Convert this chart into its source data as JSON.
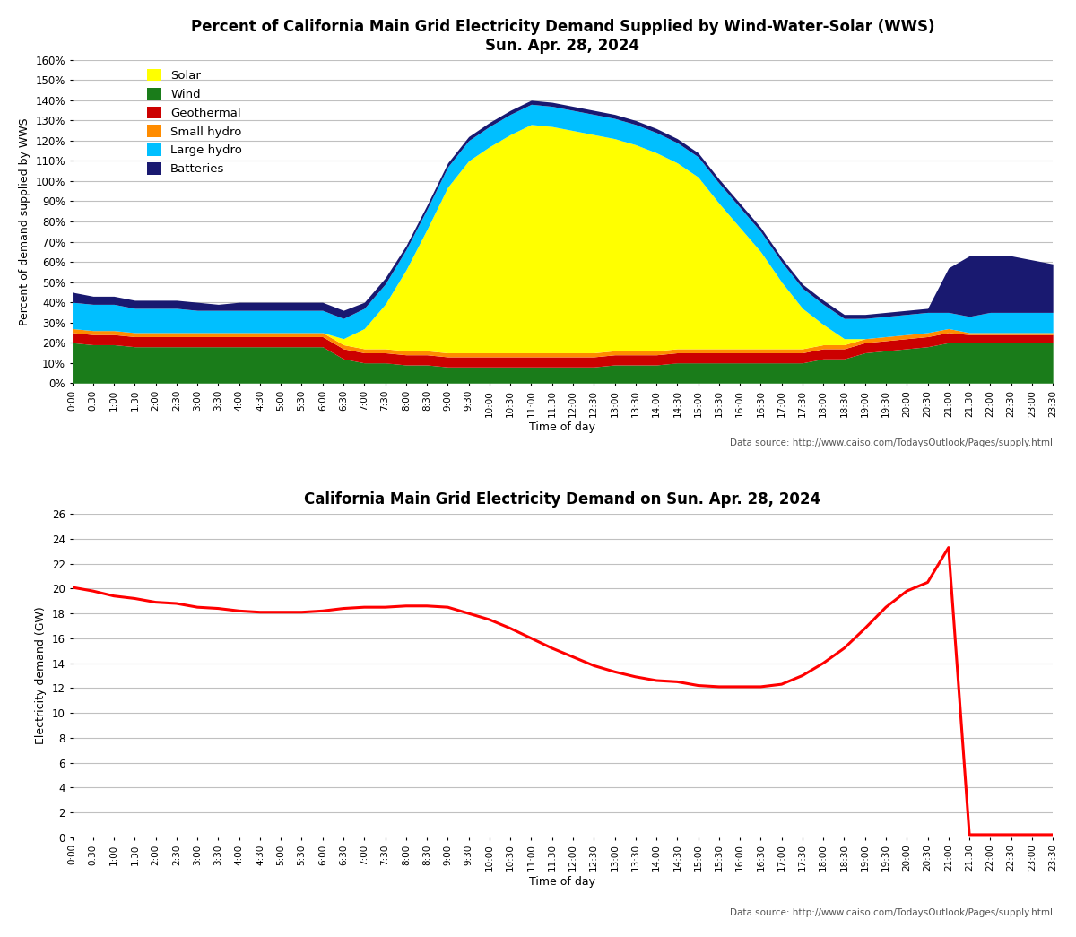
{
  "title1": "Percent of California Main Grid Electricity Demand Supplied by Wind-Water-Solar (WWS)",
  "subtitle1": "Sun. Apr. 28, 2024",
  "title2": "California Main Grid Electricity Demand on Sun. Apr. 28, 2024",
  "ylabel1": "Percent of demand supplied by WWS",
  "ylabel2": "Electricity demand (GW)",
  "xlabel": "Time of day",
  "datasource": "Data source: http://www.caiso.com/TodaysOutlook/Pages/supply.html",
  "time_labels": [
    "0:00",
    "0:30",
    "1:00",
    "1:30",
    "2:00",
    "2:30",
    "3:00",
    "3:30",
    "4:00",
    "4:30",
    "5:00",
    "5:30",
    "6:00",
    "6:30",
    "7:00",
    "7:30",
    "8:00",
    "8:30",
    "9:00",
    "9:30",
    "10:00",
    "10:30",
    "11:00",
    "11:30",
    "12:00",
    "12:30",
    "13:00",
    "13:30",
    "14:00",
    "14:30",
    "15:00",
    "15:30",
    "16:00",
    "16:30",
    "17:00",
    "17:30",
    "18:00",
    "18:30",
    "19:00",
    "19:30",
    "20:00",
    "20:30",
    "21:00",
    "21:30",
    "22:00",
    "22:30",
    "23:00",
    "23:30"
  ],
  "colors": {
    "Solar": "#ffff00",
    "Wind": "#1a7c1a",
    "Geothermal": "#cc0000",
    "Small_hydro": "#ff8c00",
    "Large_hydro": "#00bfff",
    "Batteries": "#191970"
  },
  "wind": [
    20,
    19,
    19,
    18,
    18,
    18,
    18,
    18,
    18,
    18,
    18,
    18,
    18,
    12,
    10,
    10,
    9,
    9,
    8,
    8,
    8,
    8,
    8,
    8,
    8,
    8,
    9,
    9,
    9,
    10,
    10,
    10,
    10,
    10,
    10,
    10,
    12,
    12,
    15,
    16,
    17,
    18,
    20,
    20,
    20,
    20,
    20,
    20
  ],
  "geothermal": [
    5,
    5,
    5,
    5,
    5,
    5,
    5,
    5,
    5,
    5,
    5,
    5,
    5,
    5,
    5,
    5,
    5,
    5,
    5,
    5,
    5,
    5,
    5,
    5,
    5,
    5,
    5,
    5,
    5,
    5,
    5,
    5,
    5,
    5,
    5,
    5,
    5,
    5,
    5,
    5,
    5,
    5,
    5,
    4,
    4,
    4,
    4,
    4
  ],
  "small_hydro": [
    2,
    2,
    2,
    2,
    2,
    2,
    2,
    2,
    2,
    2,
    2,
    2,
    2,
    2,
    2,
    2,
    2,
    2,
    2,
    2,
    2,
    2,
    2,
    2,
    2,
    2,
    2,
    2,
    2,
    2,
    2,
    2,
    2,
    2,
    2,
    2,
    2,
    2,
    2,
    2,
    2,
    2,
    2,
    1,
    1,
    1,
    1,
    1
  ],
  "solar": [
    0,
    0,
    0,
    0,
    0,
    0,
    0,
    0,
    0,
    0,
    0,
    0,
    0,
    3,
    10,
    22,
    40,
    60,
    82,
    95,
    102,
    108,
    113,
    112,
    110,
    108,
    105,
    102,
    98,
    92,
    85,
    72,
    60,
    48,
    33,
    20,
    10,
    3,
    0,
    0,
    0,
    0,
    0,
    0,
    0,
    0,
    0,
    0
  ],
  "large_hydro": [
    13,
    13,
    13,
    12,
    12,
    12,
    11,
    11,
    11,
    11,
    11,
    11,
    11,
    10,
    10,
    10,
    10,
    10,
    10,
    10,
    10,
    10,
    10,
    10,
    10,
    10,
    10,
    10,
    10,
    10,
    10,
    10,
    10,
    10,
    10,
    10,
    10,
    10,
    10,
    10,
    10,
    10,
    8,
    8,
    10,
    10,
    10,
    10
  ],
  "batteries": [
    5,
    4,
    4,
    4,
    4,
    4,
    4,
    3,
    4,
    4,
    4,
    4,
    4,
    4,
    3,
    3,
    2,
    2,
    2,
    2,
    2,
    2,
    2,
    2,
    2,
    2,
    2,
    2,
    2,
    2,
    2,
    2,
    2,
    2,
    2,
    2,
    2,
    2,
    2,
    2,
    2,
    2,
    22,
    30,
    28,
    28,
    26,
    24
  ],
  "demand_gw": [
    20.1,
    19.8,
    19.4,
    19.2,
    18.9,
    18.8,
    18.5,
    18.4,
    18.2,
    18.1,
    18.1,
    18.1,
    18.2,
    18.4,
    18.5,
    18.5,
    18.6,
    18.6,
    18.5,
    18.0,
    17.5,
    16.8,
    16.0,
    15.2,
    14.5,
    13.8,
    13.3,
    12.9,
    12.6,
    12.5,
    12.2,
    12.1,
    12.1,
    12.1,
    12.3,
    13.0,
    14.0,
    15.2,
    16.8,
    18.5,
    19.8,
    20.5,
    23.3,
    0.2,
    0.2,
    0.2,
    0.2,
    0.2
  ],
  "ylim1": [
    0,
    160
  ],
  "ylim2": [
    0,
    26
  ],
  "yticks1": [
    0,
    10,
    20,
    30,
    40,
    50,
    60,
    70,
    80,
    90,
    100,
    110,
    120,
    130,
    140,
    150,
    160
  ],
  "yticks2": [
    0,
    2,
    4,
    6,
    8,
    10,
    12,
    14,
    16,
    18,
    20,
    22,
    24,
    26
  ],
  "bg_color": "#ffffff",
  "grid_color": "#c0c0c0",
  "line_color_demand": "#ff0000"
}
